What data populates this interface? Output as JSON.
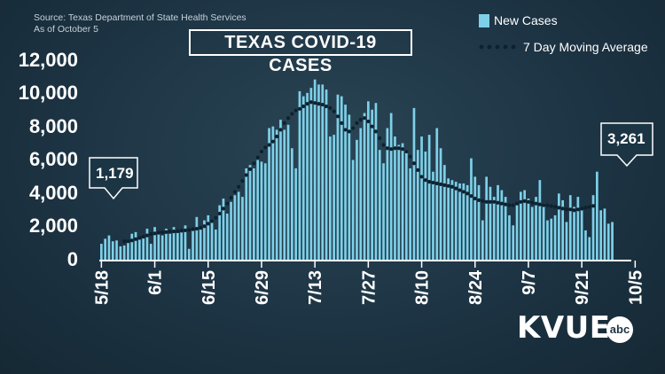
{
  "source_line1": "Source: Texas Department of State Health Services",
  "source_line2": "As of October 5",
  "logo_text": "KVUE",
  "logo_badge": "abc",
  "colors": {
    "bars": "#7ed0e8",
    "average": "#0d2230",
    "background": "#1d3444",
    "text": "#ffffff"
  },
  "chart_data": {
    "type": "bar",
    "title": "TEXAS COVID-19 CASES",
    "legend": {
      "placement": "top-right",
      "items": [
        "New Cases",
        "7 Day Moving Average"
      ]
    },
    "y_ticks": [
      0,
      2000,
      4000,
      6000,
      8000,
      10000,
      12000
    ],
    "y_tick_labels": [
      "0",
      "2,000",
      "4,000",
      "6,000",
      "8,000",
      "10,000",
      "12,000"
    ],
    "ylim": [
      0,
      12500
    ],
    "x_tick_labels": [
      "5/18",
      "6/1",
      "6/15",
      "6/29",
      "7/13",
      "7/27",
      "8/10",
      "8/24",
      "9/7",
      "9/21",
      "10/5"
    ],
    "grid": false,
    "start_date": "5/18",
    "series": [
      {
        "name": "New Cases",
        "type": "bar",
        "values": [
          1000,
          1300,
          1500,
          1150,
          1200,
          850,
          900,
          1100,
          1600,
          1700,
          1250,
          1400,
          1900,
          1000,
          2000,
          1700,
          1500,
          1900,
          1600,
          2000,
          1650,
          1750,
          2100,
          700,
          1950,
          2600,
          2000,
          2400,
          2700,
          2300,
          1850,
          3300,
          3700,
          2800,
          3500,
          3900,
          4100,
          3800,
          5500,
          5700,
          5500,
          6000,
          5900,
          5800,
          7900,
          8000,
          7800,
          8400,
          7800,
          8100,
          6700,
          5500,
          10100,
          9800,
          10000,
          10300,
          10800,
          10500,
          10500,
          10200,
          7400,
          7500,
          9900,
          9800,
          9300,
          8700,
          6000,
          7200,
          7900,
          8800,
          9500,
          9000,
          9400,
          6600,
          5800,
          7900,
          8800,
          7400,
          6900,
          7000,
          6600,
          5500,
          9100,
          6600,
          7400,
          6500,
          7500,
          5300,
          7900,
          6700,
          5700,
          4900,
          4800,
          4700,
          4600,
          4600,
          4500,
          6100,
          5000,
          4500,
          2400,
          5000,
          4400,
          3800,
          4500,
          4200,
          3800,
          2700,
          2100,
          3300,
          4100,
          4200,
          3700,
          3200,
          3800,
          4800,
          3400,
          2400,
          2500,
          2700,
          4000,
          3600,
          2300,
          3900,
          3200,
          3800,
          3000,
          1800,
          1400,
          3900,
          5300,
          3000,
          3100,
          2200,
          2300
        ]
      },
      {
        "name": "7 Day Moving Average",
        "type": "line",
        "start_index": 6,
        "values": [
          1150,
          1150,
          1200,
          1280,
          1350,
          1420,
          1500,
          1580,
          1620,
          1660,
          1680,
          1700,
          1720,
          1740,
          1750,
          1780,
          1800,
          1830,
          1870,
          1900,
          1950,
          2050,
          2200,
          2350,
          2550,
          2800,
          3100,
          3400,
          3750,
          4100,
          4400,
          4750,
          5100,
          5450,
          5800,
          6150,
          6500,
          6750,
          6900,
          7100,
          7400,
          7800,
          8200,
          8500,
          8750,
          8950,
          9050,
          9200,
          9350,
          9450,
          9400,
          9350,
          9300,
          9200,
          9100,
          8900,
          8600,
          8200,
          7800,
          7700,
          7900,
          8200,
          8400,
          8500,
          8300,
          8000,
          7700,
          7300,
          6900,
          6700,
          6650,
          6700,
          6700,
          6650,
          6500,
          6200,
          5800,
          5400,
          5000,
          4800,
          4700,
          4650,
          4600,
          4550,
          4500,
          4450,
          4400,
          4300,
          4200,
          4100,
          4000,
          3850,
          3700,
          3600,
          3550,
          3500,
          3500,
          3500,
          3450,
          3400,
          3350,
          3300,
          3300,
          3400,
          3500,
          3550,
          3500,
          3450,
          3400,
          3350,
          3300,
          3300,
          3250,
          3200,
          3150,
          3100,
          3050,
          3050,
          3000,
          3050,
          3100,
          3150,
          3200,
          3261
        ]
      }
    ],
    "annotations": [
      {
        "label": "1,179",
        "date": "5/18"
      },
      {
        "label": "3,261",
        "date": "10/5"
      }
    ]
  }
}
